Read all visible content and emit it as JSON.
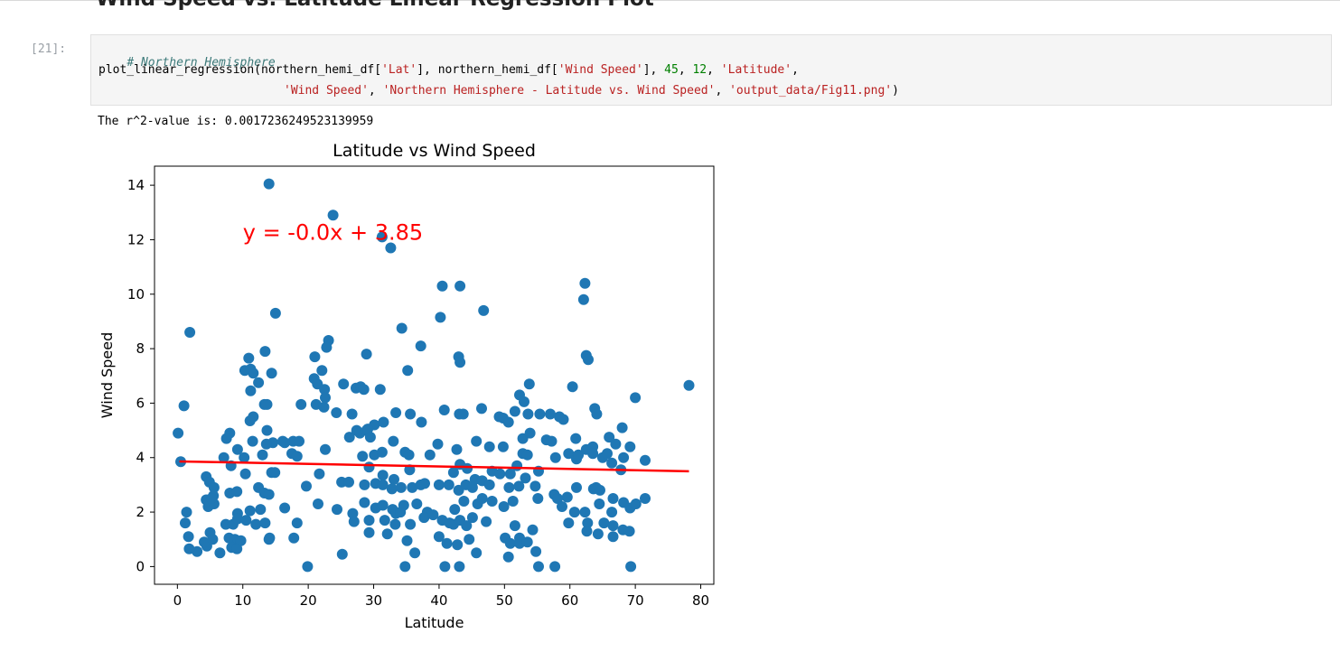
{
  "notebook": {
    "section_heading": "Wind Speed vs. Latitude Linear Regression Plot",
    "cell_prompt": "[21]:",
    "code": {
      "comment": "# Northern Hemisphere",
      "line2_fn": "plot_linear_regression(northern_hemi_df[",
      "line2_str1": "'Lat'",
      "line2_mid1": "], northern_hemi_df[",
      "line2_str2": "'Wind Speed'",
      "line2_mid2": "], ",
      "line2_num1": "45",
      "line2_sep": ", ",
      "line2_num2": "12",
      "line2_mid3": ", ",
      "line2_str3": "'Latitude'",
      "line2_end": ",",
      "line3_str1": "'Wind Speed'",
      "line3_sep1": ", ",
      "line3_str2": "'Northern Hemisphere - Latitude vs. Wind Speed'",
      "line3_sep2": ", ",
      "line3_str3": "'output_data/Fig11.png'",
      "line3_end": ")"
    },
    "output_text": "The r^2-value is: 0.0017236249523139959"
  },
  "colors": {
    "points": "#1f77b4",
    "regression": "#ff0000",
    "annotation": "#ff0000"
  },
  "chart_data": {
    "type": "scatter",
    "title": "Latitude vs Wind Speed",
    "xlabel": "Latitude",
    "ylabel": "Wind Speed",
    "xlim": [
      -3.5,
      82
    ],
    "ylim": [
      -0.65,
      14.7
    ],
    "xticks": [
      0,
      10,
      20,
      30,
      40,
      50,
      60,
      70,
      80
    ],
    "yticks": [
      0,
      2,
      4,
      6,
      8,
      10,
      12,
      14
    ],
    "annotation": {
      "text": "y = -0.0x + 3.85",
      "x": 10,
      "y": 12
    },
    "regression": {
      "x": [
        0.3,
        78.2
      ],
      "y": [
        3.86,
        3.5
      ]
    },
    "points": [
      [
        14,
        14.05
      ],
      [
        23.8,
        12.9
      ],
      [
        31.3,
        12.1
      ],
      [
        32.6,
        11.7
      ],
      [
        40.5,
        10.3
      ],
      [
        43.2,
        10.3
      ],
      [
        62.3,
        10.4
      ],
      [
        62.1,
        9.8
      ],
      [
        40.2,
        9.15
      ],
      [
        46.8,
        9.4
      ],
      [
        15,
        9.3
      ],
      [
        34.3,
        8.75
      ],
      [
        1.9,
        8.6
      ],
      [
        37.2,
        8.1
      ],
      [
        23.1,
        8.3
      ],
      [
        22.8,
        8.05
      ],
      [
        13.4,
        7.9
      ],
      [
        28.9,
        7.8
      ],
      [
        21,
        7.7
      ],
      [
        43,
        7.7
      ],
      [
        10.9,
        7.65
      ],
      [
        62.5,
        7.75
      ],
      [
        62.8,
        7.6
      ],
      [
        43.2,
        7.5
      ],
      [
        10.3,
        7.2
      ],
      [
        11.2,
        7.25
      ],
      [
        11.6,
        7.1
      ],
      [
        14.4,
        7.1
      ],
      [
        22.1,
        7.2
      ],
      [
        35.2,
        7.2
      ],
      [
        12.4,
        6.75
      ],
      [
        20.9,
        6.9
      ],
      [
        21.4,
        6.7
      ],
      [
        22.5,
        6.5
      ],
      [
        25.4,
        6.7
      ],
      [
        27.3,
        6.55
      ],
      [
        28,
        6.6
      ],
      [
        28.5,
        6.5
      ],
      [
        31,
        6.5
      ],
      [
        53.8,
        6.7
      ],
      [
        60.4,
        6.6
      ],
      [
        78.2,
        6.65
      ],
      [
        11.2,
        6.45
      ],
      [
        1,
        5.9
      ],
      [
        13.3,
        5.95
      ],
      [
        13.7,
        5.95
      ],
      [
        18.9,
        5.95
      ],
      [
        21.2,
        5.95
      ],
      [
        22.4,
        5.85
      ],
      [
        22.6,
        6.2
      ],
      [
        52.3,
        6.3
      ],
      [
        53,
        6.05
      ],
      [
        70,
        6.2
      ],
      [
        24.3,
        5.65
      ],
      [
        26.7,
        5.6
      ],
      [
        33.4,
        5.65
      ],
      [
        35.6,
        5.6
      ],
      [
        37.3,
        5.3
      ],
      [
        40.8,
        5.75
      ],
      [
        43.1,
        5.6
      ],
      [
        43.7,
        5.6
      ],
      [
        46.5,
        5.8
      ],
      [
        49.2,
        5.5
      ],
      [
        49.8,
        5.45
      ],
      [
        50.6,
        5.3
      ],
      [
        51.6,
        5.7
      ],
      [
        53.6,
        5.6
      ],
      [
        55.4,
        5.6
      ],
      [
        57,
        5.6
      ],
      [
        58.4,
        5.5
      ],
      [
        59,
        5.4
      ],
      [
        63.8,
        5.8
      ],
      [
        64.1,
        5.6
      ],
      [
        11.6,
        5.5
      ],
      [
        11.1,
        5.35
      ],
      [
        30.1,
        5.2
      ],
      [
        31.5,
        5.3
      ],
      [
        0.1,
        4.9
      ],
      [
        8,
        4.9
      ],
      [
        13.7,
        5
      ],
      [
        7.5,
        4.7
      ],
      [
        11.5,
        4.6
      ],
      [
        14.6,
        4.55
      ],
      [
        16.1,
        4.6
      ],
      [
        16.4,
        4.55
      ],
      [
        17.7,
        4.6
      ],
      [
        18.6,
        4.6
      ],
      [
        26.3,
        4.75
      ],
      [
        27.4,
        5
      ],
      [
        27.9,
        4.9
      ],
      [
        28.9,
        5
      ],
      [
        29.1,
        5.05
      ],
      [
        29.5,
        4.75
      ],
      [
        33,
        4.6
      ],
      [
        39.8,
        4.5
      ],
      [
        42.7,
        4.3
      ],
      [
        45.7,
        4.6
      ],
      [
        47.7,
        4.4
      ],
      [
        49.8,
        4.4
      ],
      [
        52.8,
        4.7
      ],
      [
        53.9,
        4.9
      ],
      [
        56.4,
        4.65
      ],
      [
        57.2,
        4.6
      ],
      [
        60.9,
        4.7
      ],
      [
        63.5,
        4.4
      ],
      [
        66,
        4.75
      ],
      [
        67,
        4.5
      ],
      [
        68,
        5.1
      ],
      [
        69.2,
        4.4
      ],
      [
        22.6,
        4.3
      ],
      [
        4.4,
        3.3
      ],
      [
        7.1,
        4
      ],
      [
        8.2,
        3.7
      ],
      [
        9.2,
        4.3
      ],
      [
        10.2,
        4
      ],
      [
        13,
        4.1
      ],
      [
        13.6,
        4.5
      ],
      [
        17.5,
        4.15
      ],
      [
        18.3,
        4.05
      ],
      [
        28.3,
        4.05
      ],
      [
        30.1,
        4.1
      ],
      [
        31.3,
        4.2
      ],
      [
        34.8,
        4.2
      ],
      [
        35.4,
        4.1
      ],
      [
        38.6,
        4.1
      ],
      [
        43.2,
        3.75
      ],
      [
        51.9,
        3.7
      ],
      [
        52.8,
        4.15
      ],
      [
        53.5,
        4.1
      ],
      [
        55.2,
        3.5
      ],
      [
        57.8,
        4
      ],
      [
        59.8,
        4.15
      ],
      [
        61,
        3.95
      ],
      [
        61.3,
        4.1
      ],
      [
        62.5,
        4.3
      ],
      [
        63.5,
        4.15
      ],
      [
        65,
        4
      ],
      [
        65.7,
        4.15
      ],
      [
        66.4,
        3.8
      ],
      [
        67.8,
        3.55
      ],
      [
        68.2,
        4
      ],
      [
        71.5,
        3.9
      ],
      [
        0.5,
        3.85
      ],
      [
        14.4,
        3.45
      ],
      [
        14.9,
        3.45
      ],
      [
        21.7,
        3.4
      ],
      [
        29.3,
        3.65
      ],
      [
        31.4,
        3.35
      ],
      [
        33.1,
        3.2
      ],
      [
        35.5,
        3.55
      ],
      [
        42.2,
        3.45
      ],
      [
        44.3,
        3.6
      ],
      [
        45.5,
        3.2
      ],
      [
        48.1,
        3.5
      ],
      [
        49.3,
        3.4
      ],
      [
        50.9,
        3.4
      ],
      [
        53.2,
        3.25
      ],
      [
        10.4,
        3.4
      ],
      [
        4.9,
        3.1
      ],
      [
        5.6,
        2.9
      ],
      [
        5.5,
        2.6
      ],
      [
        8,
        2.7
      ],
      [
        9.1,
        2.75
      ],
      [
        12.4,
        2.9
      ],
      [
        13.3,
        2.7
      ],
      [
        14,
        2.65
      ],
      [
        19.7,
        2.95
      ],
      [
        25.1,
        3.1
      ],
      [
        26.2,
        3.1
      ],
      [
        28.6,
        3
      ],
      [
        30.3,
        3.05
      ],
      [
        31.4,
        3
      ],
      [
        32.8,
        2.85
      ],
      [
        34.2,
        2.9
      ],
      [
        35.9,
        2.9
      ],
      [
        37.2,
        3
      ],
      [
        37.8,
        3.05
      ],
      [
        40,
        3
      ],
      [
        41.5,
        3
      ],
      [
        43,
        2.8
      ],
      [
        44.1,
        3
      ],
      [
        45.1,
        2.9
      ],
      [
        46.6,
        3.15
      ],
      [
        47.7,
        3
      ],
      [
        50.7,
        2.9
      ],
      [
        52.2,
        2.95
      ],
      [
        54.7,
        2.95
      ],
      [
        57.6,
        2.65
      ],
      [
        58.1,
        2.5
      ],
      [
        59.6,
        2.55
      ],
      [
        61,
        2.9
      ],
      [
        63.6,
        2.85
      ],
      [
        64,
        2.9
      ],
      [
        64.6,
        2.8
      ],
      [
        66.6,
        2.5
      ],
      [
        4.4,
        2.45
      ],
      [
        4.7,
        2.2
      ],
      [
        5.6,
        2.3
      ],
      [
        5.2,
        2.5
      ],
      [
        9.2,
        1.95
      ],
      [
        11.1,
        2.05
      ],
      [
        12.7,
        2.1
      ],
      [
        16.4,
        2.15
      ],
      [
        21.5,
        2.3
      ],
      [
        24.4,
        2.1
      ],
      [
        26.8,
        1.95
      ],
      [
        28.6,
        2.35
      ],
      [
        30.3,
        2.15
      ],
      [
        31.4,
        2.25
      ],
      [
        32.9,
        2.1
      ],
      [
        33.4,
        1.95
      ],
      [
        34.1,
        2
      ],
      [
        34.6,
        2.25
      ],
      [
        36.6,
        2.3
      ],
      [
        38.2,
        2
      ],
      [
        42.4,
        2.1
      ],
      [
        43.8,
        2.4
      ],
      [
        45.9,
        2.3
      ],
      [
        46.6,
        2.5
      ],
      [
        48.1,
        2.4
      ],
      [
        49.9,
        2.2
      ],
      [
        51.3,
        2.4
      ],
      [
        55.1,
        2.5
      ],
      [
        58.8,
        2.2
      ],
      [
        60.7,
        2
      ],
      [
        62.3,
        2
      ],
      [
        64.5,
        2.3
      ],
      [
        66.4,
        2
      ],
      [
        68.2,
        2.35
      ],
      [
        69.2,
        2.15
      ],
      [
        70.1,
        2.3
      ],
      [
        71.5,
        2.5
      ],
      [
        1.4,
        2
      ],
      [
        1.2,
        1.6
      ],
      [
        7.4,
        1.55
      ],
      [
        8.5,
        1.55
      ],
      [
        9.2,
        1.75
      ],
      [
        10.5,
        1.7
      ],
      [
        12,
        1.55
      ],
      [
        13.4,
        1.6
      ],
      [
        18.3,
        1.6
      ],
      [
        27,
        1.65
      ],
      [
        29.3,
        1.7
      ],
      [
        31.7,
        1.7
      ],
      [
        33.3,
        1.55
      ],
      [
        35.6,
        1.55
      ],
      [
        37.7,
        1.8
      ],
      [
        39.1,
        1.9
      ],
      [
        40.5,
        1.7
      ],
      [
        41.6,
        1.6
      ],
      [
        42.2,
        1.55
      ],
      [
        43.2,
        1.7
      ],
      [
        44.2,
        1.5
      ],
      [
        45.1,
        1.8
      ],
      [
        47.2,
        1.65
      ],
      [
        51.6,
        1.5
      ],
      [
        54.3,
        1.35
      ],
      [
        59.8,
        1.6
      ],
      [
        62.7,
        1.6
      ],
      [
        65.2,
        1.6
      ],
      [
        66.6,
        1.5
      ],
      [
        68.1,
        1.35
      ],
      [
        69.1,
        1.3
      ],
      [
        1.7,
        1.1
      ],
      [
        5,
        1.25
      ],
      [
        7.9,
        1.05
      ],
      [
        8.8,
        1
      ],
      [
        9.3,
        0.9
      ],
      [
        14,
        1
      ],
      [
        14.1,
        1.05
      ],
      [
        17.8,
        1.05
      ],
      [
        29.3,
        1.25
      ],
      [
        32.1,
        1.2
      ],
      [
        35.1,
        0.95
      ],
      [
        40,
        1.1
      ],
      [
        41.2,
        0.85
      ],
      [
        42.8,
        0.8
      ],
      [
        44.6,
        1
      ],
      [
        50.1,
        1.05
      ],
      [
        50.9,
        0.85
      ],
      [
        52.3,
        1.05
      ],
      [
        52.3,
        0.85
      ],
      [
        53.5,
        0.9
      ],
      [
        62.6,
        1.3
      ],
      [
        64.3,
        1.2
      ],
      [
        66.6,
        1.1
      ],
      [
        3,
        0.55
      ],
      [
        4.5,
        0.75
      ],
      [
        1.8,
        0.65
      ],
      [
        6.5,
        0.5
      ],
      [
        8.3,
        0.7
      ],
      [
        9.1,
        0.65
      ],
      [
        25.2,
        0.45
      ],
      [
        36.3,
        0.5
      ],
      [
        45.7,
        0.5
      ],
      [
        50.6,
        0.35
      ],
      [
        54.8,
        0.55
      ],
      [
        19.9,
        0
      ],
      [
        34.8,
        0
      ],
      [
        40.9,
        0
      ],
      [
        43.1,
        0
      ],
      [
        55.2,
        0
      ],
      [
        57.7,
        0
      ],
      [
        69.3,
        0
      ],
      [
        9.7,
        0.95
      ],
      [
        4.1,
        0.9
      ],
      [
        5.4,
        1.0
      ]
    ]
  }
}
